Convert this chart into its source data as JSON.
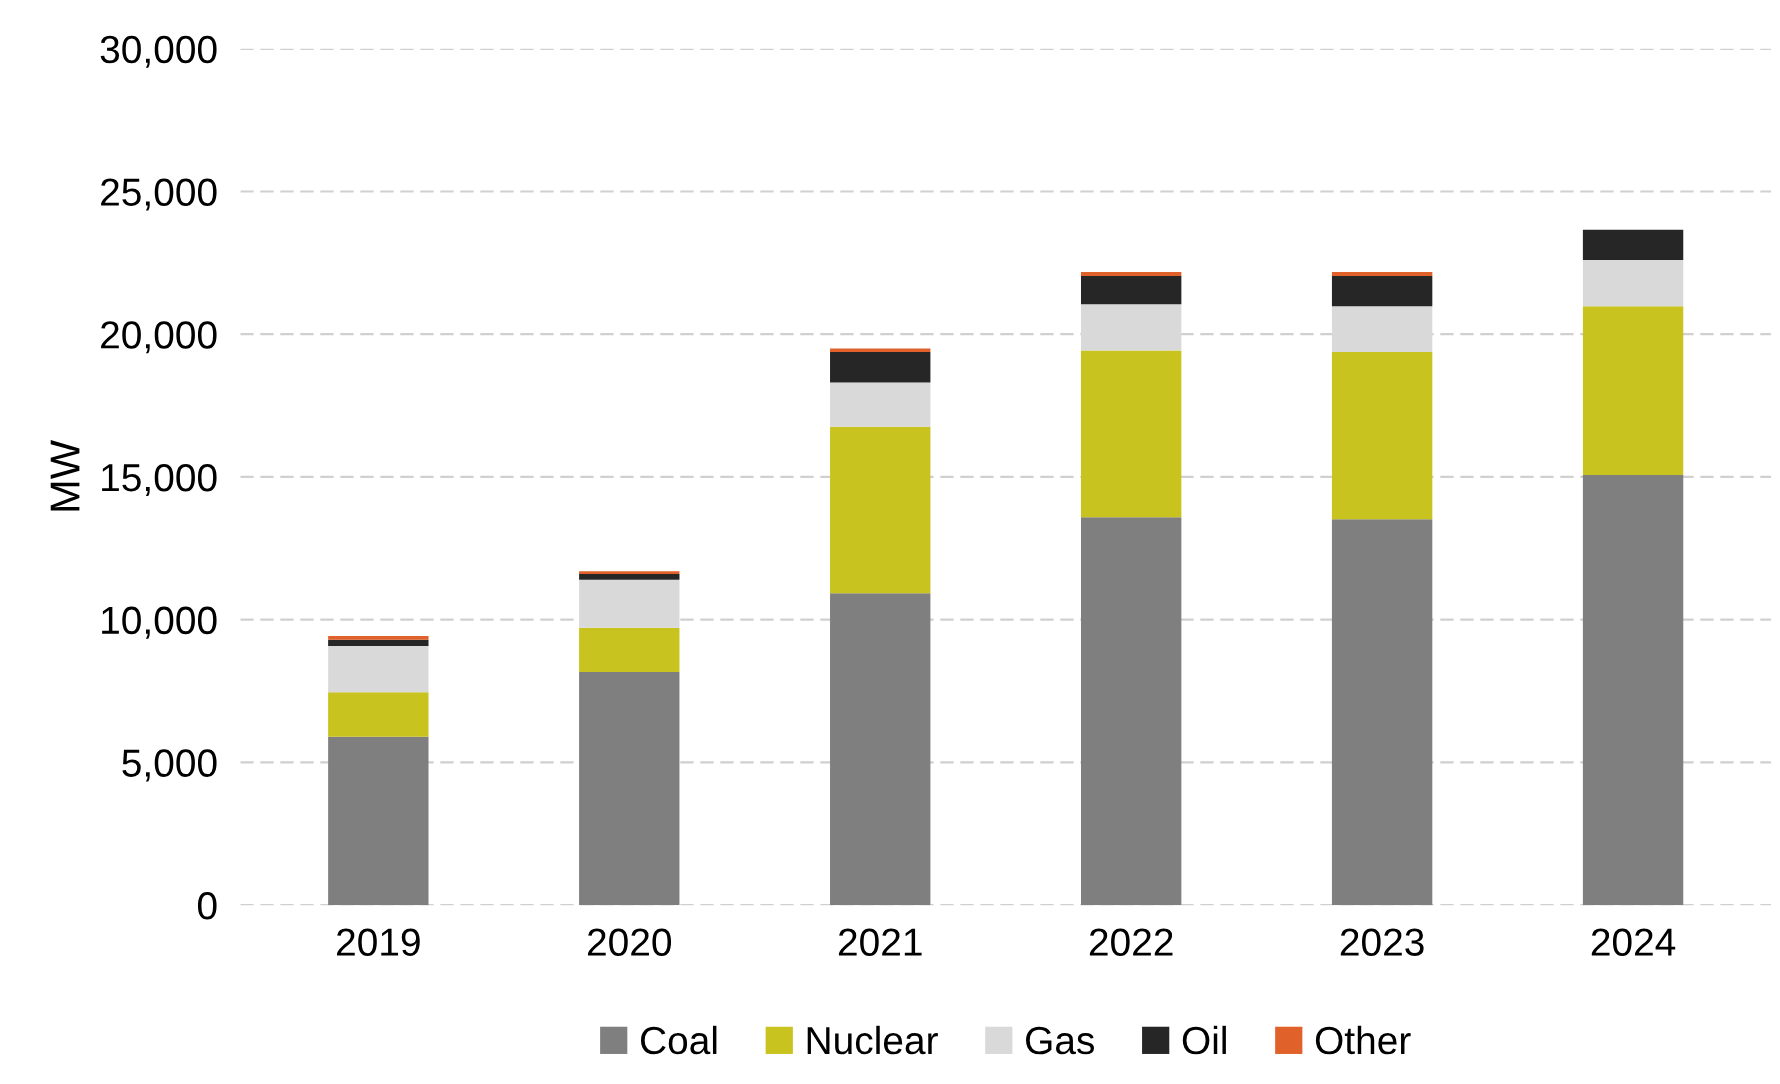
{
  "chart_data": {
    "type": "bar",
    "stacked": true,
    "ylabel": "MW",
    "categories": [
      "2019",
      "2020",
      "2021",
      "2022",
      "2023",
      "2024"
    ],
    "series": [
      {
        "name": "Coal",
        "color": "#7f7f7f",
        "values": [
          5900,
          8170,
          10930,
          13590,
          13520,
          15070
        ]
      },
      {
        "name": "Nuclear",
        "color": "#c9c31f",
        "values": [
          1560,
          1550,
          5830,
          5840,
          5860,
          5910
        ]
      },
      {
        "name": "Gas",
        "color": "#d9d9d9",
        "values": [
          1620,
          1680,
          1550,
          1620,
          1600,
          1620
        ]
      },
      {
        "name": "Oil",
        "color": "#262626",
        "values": [
          220,
          200,
          1070,
          990,
          1060,
          1060
        ]
      },
      {
        "name": "Other",
        "color": "#e0622a",
        "values": [
          130,
          100,
          120,
          140,
          140,
          0
        ]
      }
    ],
    "ylim": [
      0,
      30000
    ],
    "yticks": [
      {
        "value": 0,
        "label": "0"
      },
      {
        "value": 5000,
        "label": "5,000"
      },
      {
        "value": 10000,
        "label": "10,000"
      },
      {
        "value": 15000,
        "label": "15,000"
      },
      {
        "value": 20000,
        "label": "20,000"
      },
      {
        "value": 25000,
        "label": "25,000"
      },
      {
        "value": 30000,
        "label": "30,000"
      }
    ],
    "grid": "y",
    "legend": "bottom"
  }
}
